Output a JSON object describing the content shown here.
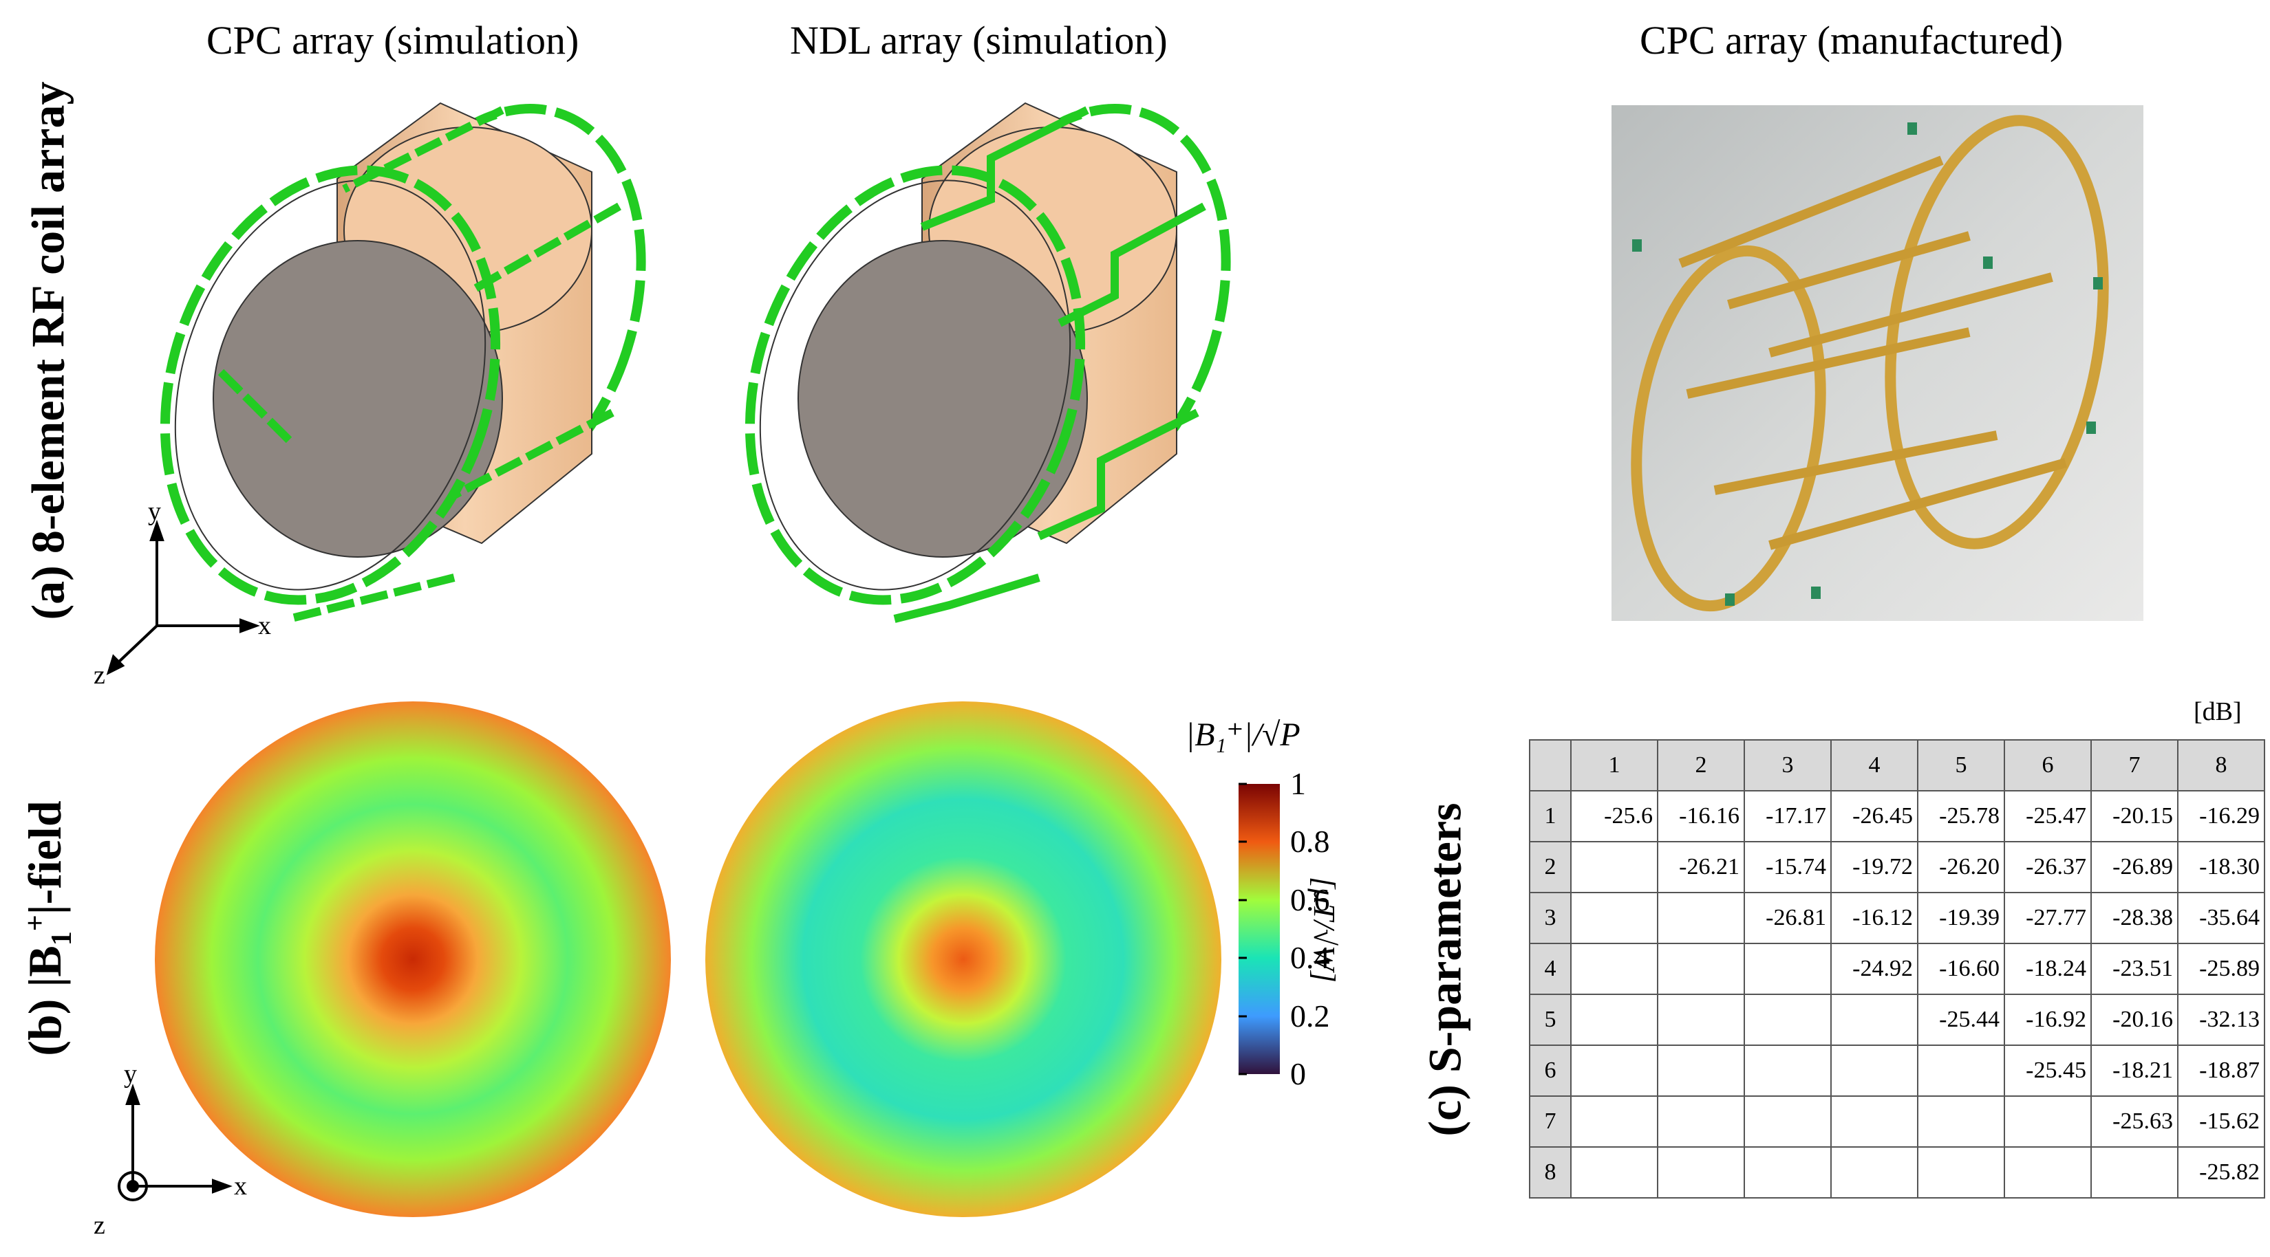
{
  "titles": {
    "cpc_sim": "CPC array (simulation)",
    "ndl_sim": "NDL array (simulation)",
    "cpc_man": "CPC array (manufactured)"
  },
  "row_labels": {
    "a": "(a) 8-element RF coil array",
    "b_prefix": "(b) |B",
    "b_sub": "1",
    "b_sup": "+",
    "b_suffix": "|-field",
    "c": "(c) S-parameters"
  },
  "axes": {
    "x": "x",
    "y": "y",
    "z": "z"
  },
  "colorbar": {
    "title": "|B₁⁺|/√P",
    "unit": "[μT/√W]",
    "ticks": [
      "1",
      "0.8",
      "0.6",
      "0.4",
      "0.2",
      "0"
    ],
    "colors": {
      "top": "#7a0403",
      "high": "#f05b12",
      "mid": "#a1fc3c",
      "low": "#1ae4b6",
      "lower": "#3e9bfe",
      "bottom": "#30123b"
    }
  },
  "coil_color": "#22cc22",
  "phantom_color": "#f3c9a3",
  "sparams": {
    "unit": "[dB]",
    "headers": [
      "1",
      "2",
      "3",
      "4",
      "5",
      "6",
      "7",
      "8"
    ],
    "rows": [
      [
        "1",
        "-25.6",
        "-16.16",
        "-17.17",
        "-26.45",
        "-25.78",
        "-25.47",
        "-20.15",
        "-16.29"
      ],
      [
        "2",
        "",
        "-26.21",
        "-15.74",
        "-19.72",
        "-26.20",
        "-26.37",
        "-26.89",
        "-18.30"
      ],
      [
        "3",
        "",
        "",
        "-26.81",
        "-16.12",
        "-19.39",
        "-27.77",
        "-28.38",
        "-35.64"
      ],
      [
        "4",
        "",
        "",
        "",
        "-24.92",
        "-16.60",
        "-18.24",
        "-23.51",
        "-25.89"
      ],
      [
        "5",
        "",
        "",
        "",
        "",
        "-25.44",
        "-16.92",
        "-20.16",
        "-32.13"
      ],
      [
        "6",
        "",
        "",
        "",
        "",
        "",
        "-25.45",
        "-18.21",
        "-18.87"
      ],
      [
        "7",
        "",
        "",
        "",
        "",
        "",
        "",
        "-25.63",
        "-15.62"
      ],
      [
        "8",
        "",
        "",
        "",
        "",
        "",
        "",
        "",
        "-25.82"
      ]
    ]
  }
}
